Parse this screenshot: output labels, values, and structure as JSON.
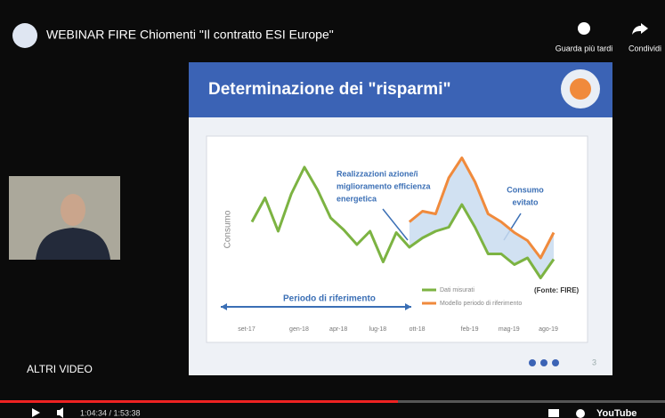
{
  "player": {
    "title": "WEBINAR FIRE Chiomenti \"Il contratto ESI Europe\"",
    "watch_later": "Guarda più tardi",
    "share": "Condividi",
    "more_videos": "ALTRI VIDEO",
    "time": "1:04:34 / 1:53:38",
    "brand": "YouTube"
  },
  "slide": {
    "title": "Determinazione dei \"risparmi\"",
    "page": "3"
  },
  "chart_data": {
    "type": "line",
    "y_label": "Consumo",
    "categories": [
      "set-17",
      null,
      null,
      null,
      "gen-18",
      null,
      null,
      "apr-18",
      null,
      null,
      "lug-18",
      null,
      null,
      "ott-18",
      null,
      null,
      null,
      "feb-19",
      null,
      null,
      "mag-19",
      null,
      null,
      "ago-19"
    ],
    "series": [
      {
        "name": "Dati misurati",
        "color": "#7cb342",
        "values": [
          47,
          65,
          40,
          68,
          88,
          71,
          50,
          41,
          30,
          40,
          17,
          39,
          28,
          35,
          40,
          43,
          60,
          43,
          23,
          23,
          15,
          20,
          5,
          19
        ]
      },
      {
        "name": "Modello periodo di riferimento",
        "color": "#f08a3c",
        "values": [
          null,
          null,
          null,
          null,
          null,
          null,
          null,
          null,
          null,
          null,
          null,
          null,
          47,
          55,
          53,
          80,
          95,
          77,
          53,
          47,
          39,
          33,
          20,
          39
        ]
      }
    ],
    "ylim": [
      0,
      100
    ],
    "annotations": [
      [
        "Realizzazioni azione/i",
        "miglioramento efficienza",
        "energetica"
      ],
      [
        "Consumo",
        "evitato"
      ]
    ],
    "reference_period": "Periodo di riferimento",
    "source": "(Fonte: FIRE)"
  }
}
